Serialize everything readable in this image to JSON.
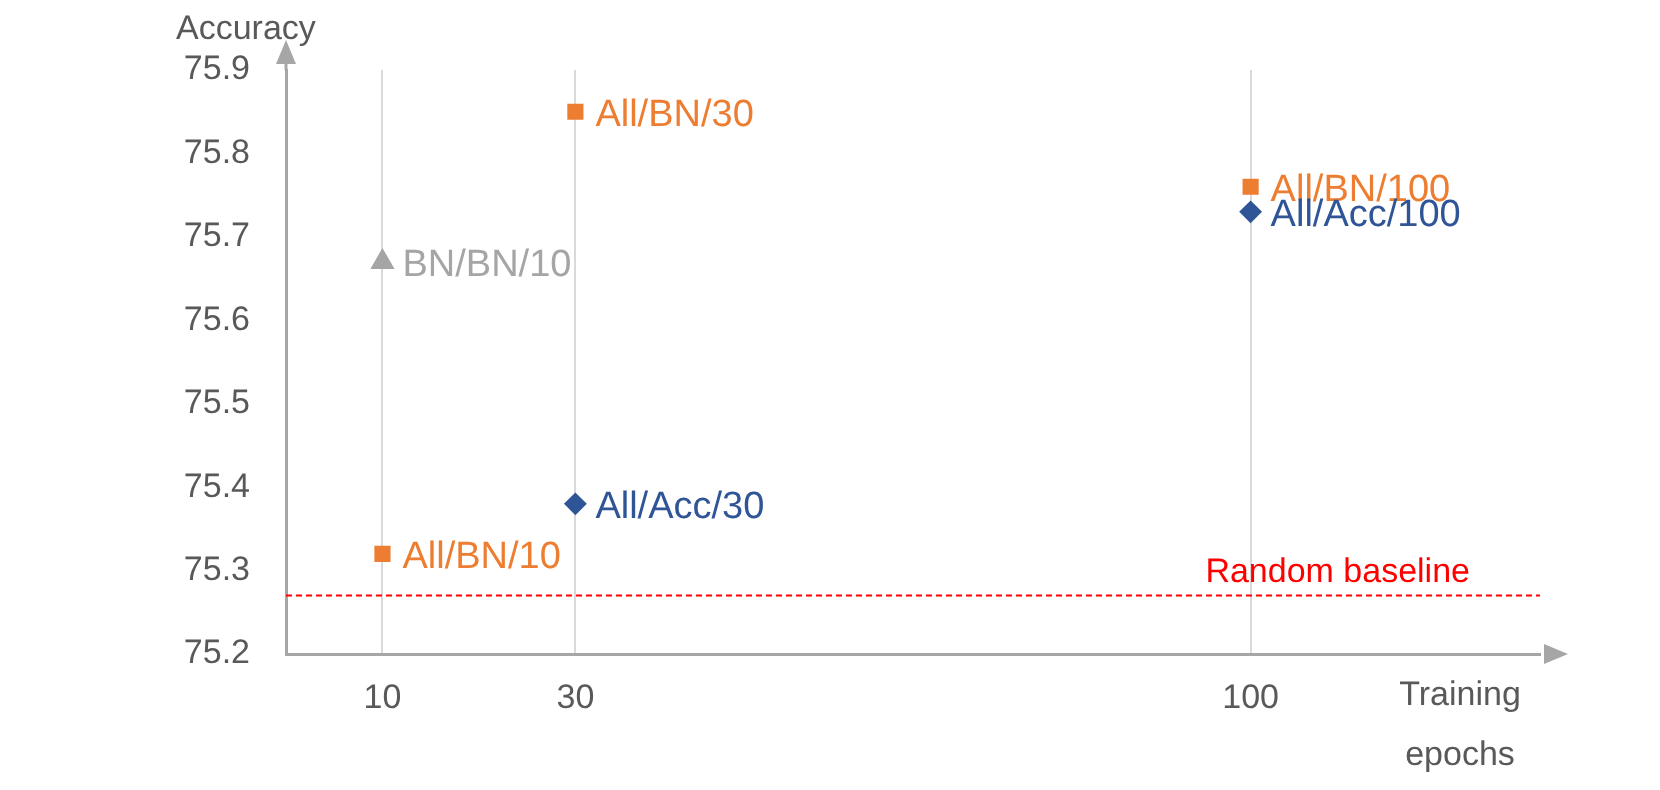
{
  "chart_data": {
    "type": "scatter",
    "ylabel": "Accuracy",
    "xlabel": "Training\nepochs",
    "series": [
      {
        "color": "#ed7d31",
        "marker": "square",
        "x": [
          10,
          30,
          100
        ],
        "values": [
          75.32,
          75.85,
          75.76
        ]
      },
      {
        "color": "#2f5597",
        "marker": "diamond",
        "x": [
          30,
          100
        ],
        "values": [
          75.38,
          75.73
        ]
      },
      {
        "color": "#a5a5a5",
        "marker": "triangle",
        "x": [
          10
        ],
        "values": [
          75.67
        ]
      }
    ],
    "annotations": [
      {
        "text": "All/BN/10",
        "x": 10,
        "y": 75.32
      },
      {
        "text": "All/BN/30",
        "x": 30,
        "y": 75.85
      },
      {
        "text": "All/BN/100",
        "x": 100,
        "y": 75.76
      },
      {
        "text": "All/Acc/30",
        "x": 30,
        "y": 75.38
      },
      {
        "text": "All/Acc/100",
        "x": 100,
        "y": 75.73
      },
      {
        "text": "BN/BN/10",
        "x": 10,
        "y": 75.67
      }
    ],
    "ref_lines": [
      {
        "axis": "y",
        "value": 75.27,
        "label": "Random baseline",
        "color": "#ff0000",
        "line_style": "dashed"
      }
    ],
    "xlim": [
      0,
      130
    ],
    "xticks": [
      10,
      30,
      100
    ],
    "ylim": [
      75.2,
      75.9
    ],
    "yticks": [
      75.2,
      75.3,
      75.4,
      75.5,
      75.6,
      75.7,
      75.8,
      75.9
    ],
    "grid": "x",
    "legend": false
  }
}
